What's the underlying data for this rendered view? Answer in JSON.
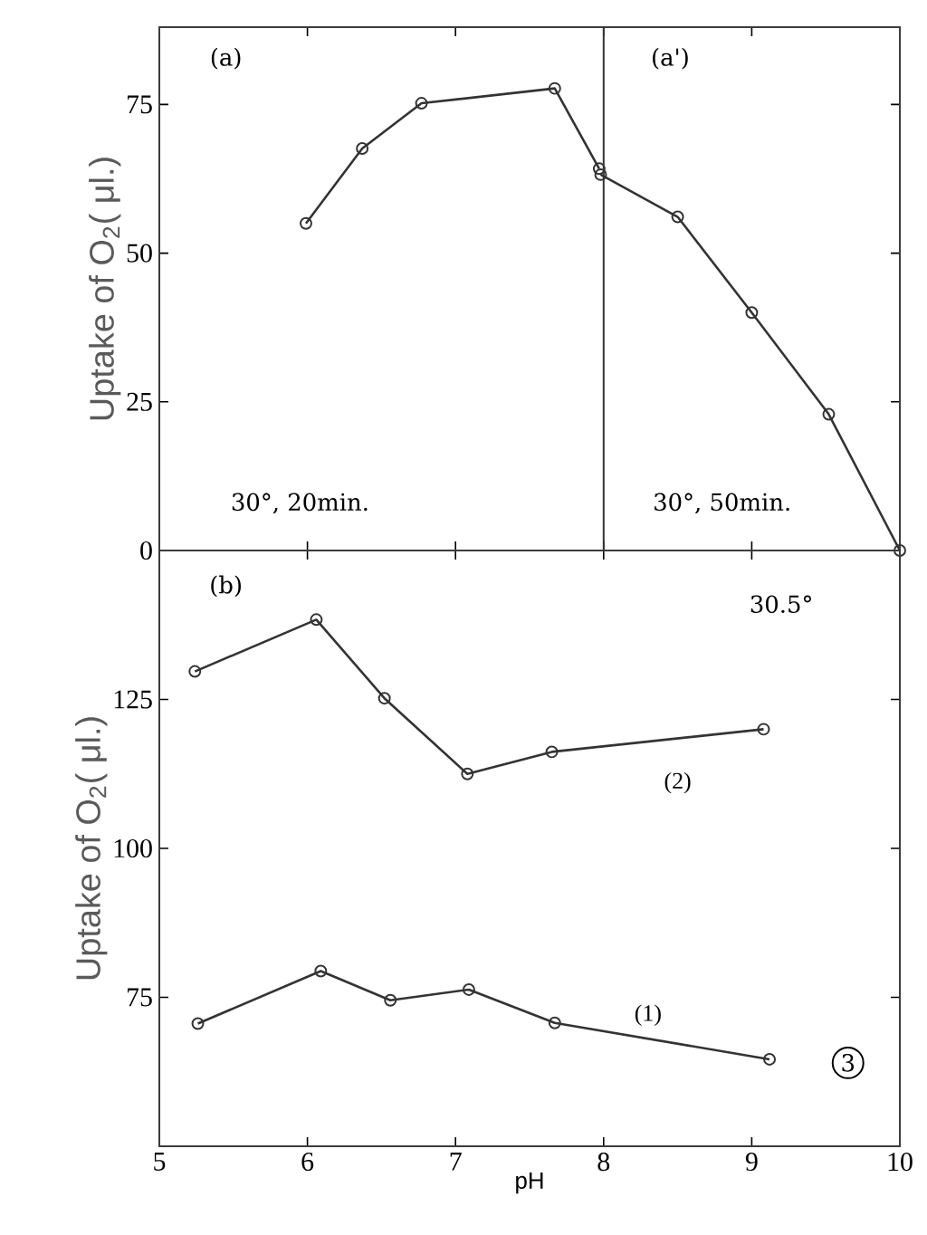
{
  "chart_data": [
    {
      "type": "line",
      "ylabel": "Uptake of O$_{2}$( μl.)",
      "xlim": [
        5,
        10
      ],
      "ylim": [
        0,
        88
      ],
      "xticks": [
        6,
        7,
        8,
        9
      ],
      "yticks": [
        0,
        25,
        50,
        75
      ],
      "tick_labels": "y",
      "marker": "circle",
      "grid": false,
      "legend": false,
      "series": [
        {
          "color": "#333333",
          "x": [
            5.99,
            6.37,
            6.77,
            7.67,
            7.97
          ],
          "values": [
            55,
            67.6,
            75.2,
            77.7,
            64.2
          ]
        },
        {
          "color": "#333333",
          "x": [
            7.98,
            8.5,
            9.0,
            9.52,
            10
          ],
          "values": [
            63.2,
            56.1,
            40,
            22.9,
            0
          ]
        }
      ],
      "ref_lines": [
        {
          "axis": "x",
          "value": 8,
          "color": "#333333"
        }
      ],
      "annotations": [
        "(a)",
        "(a')",
        "30°, 20min.",
        "30°, 50min."
      ]
    },
    {
      "type": "line",
      "xlabel": "pH",
      "ylabel": "Uptake of O$_{2}$( μl.)",
      "xlim": [
        5,
        10
      ],
      "ylim": [
        50,
        150
      ],
      "xticks": [
        5,
        6,
        7,
        8,
        9,
        10
      ],
      "yticks": [
        75,
        100,
        125
      ],
      "marker": "circle",
      "grid": false,
      "legend": false,
      "series": [
        {
          "name": "(2)",
          "color": "#333333",
          "x": [
            5.24,
            6.06,
            6.52,
            7.08,
            7.65,
            9.08
          ],
          "values": [
            129.7,
            138.4,
            125.2,
            112.5,
            116.2,
            120
          ]
        },
        {
          "name": "(1)",
          "color": "#333333",
          "x": [
            5.26,
            6.09,
            6.56,
            7.09,
            7.67,
            9.12
          ],
          "values": [
            70.6,
            79.4,
            74.5,
            76.3,
            70.7,
            64.6
          ]
        }
      ],
      "annotations": [
        "(b)",
        "30.5°",
        "3"
      ]
    }
  ]
}
